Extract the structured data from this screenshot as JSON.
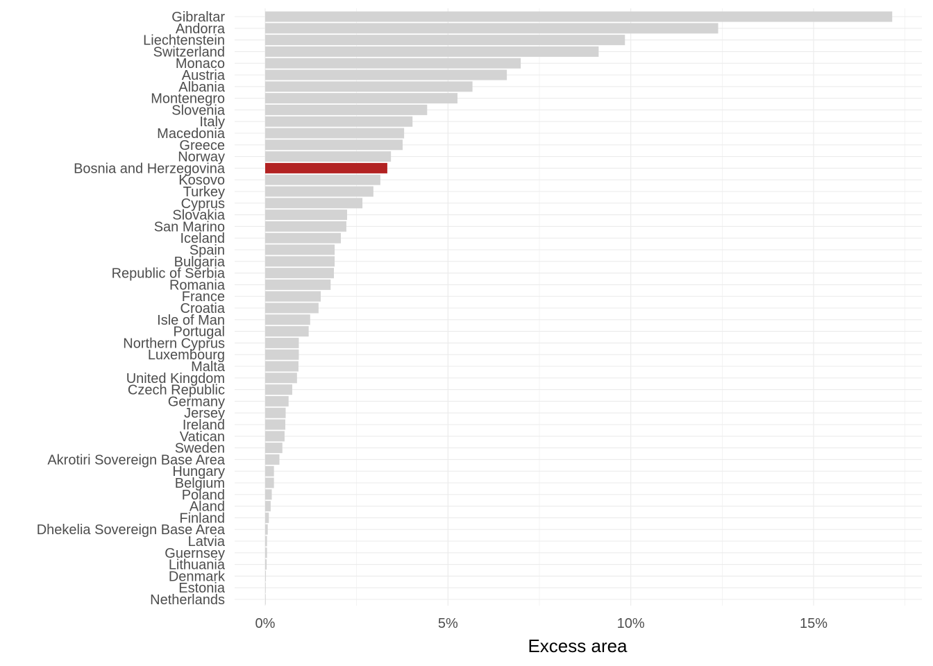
{
  "chart_data": {
    "type": "bar",
    "orientation": "horizontal",
    "xlabel": "Excess area",
    "ylabel": "",
    "title": "",
    "xlim": [
      -1.65,
      17.75
    ],
    "x_ticks": [
      0,
      5,
      10,
      15
    ],
    "x_tick_labels": [
      "0%",
      "5%",
      "10%",
      "15%"
    ],
    "grid": true,
    "highlight_color": "#b22222",
    "bar_color": "#d3d3d3",
    "categories": [
      "Gibraltar",
      "Andorra",
      "Liechtenstein",
      "Switzerland",
      "Monaco",
      "Austria",
      "Albania",
      "Montenegro",
      "Slovenia",
      "Italy",
      "Macedonia",
      "Greece",
      "Norway",
      "Bosnia and Herzegovina",
      "Kosovo",
      "Turkey",
      "Cyprus",
      "Slovakia",
      "San Marino",
      "Iceland",
      "Spain",
      "Bulgaria",
      "Republic of Serbia",
      "Romania",
      "France",
      "Croatia",
      "Isle of Man",
      "Portugal",
      "Northern Cyprus",
      "Luxembourg",
      "Malta",
      "United Kingdom",
      "Czech Republic",
      "Germany",
      "Jersey",
      "Ireland",
      "Vatican",
      "Sweden",
      "Akrotiri Sovereign Base Area",
      "Hungary",
      "Belgium",
      "Poland",
      "Aland",
      "Finland",
      "Dhekelia Sovereign Base Area",
      "Latvia",
      "Guernsey",
      "Lithuania",
      "Denmark",
      "Estonia",
      "Netherlands"
    ],
    "values": [
      17.15,
      12.39,
      9.84,
      9.12,
      6.99,
      6.61,
      5.67,
      5.26,
      4.43,
      4.03,
      3.8,
      3.76,
      3.44,
      3.34,
      3.15,
      2.96,
      2.66,
      2.24,
      2.22,
      2.07,
      1.9,
      1.9,
      1.88,
      1.79,
      1.52,
      1.46,
      1.23,
      1.19,
      0.92,
      0.92,
      0.91,
      0.87,
      0.74,
      0.64,
      0.56,
      0.55,
      0.53,
      0.47,
      0.39,
      0.24,
      0.24,
      0.18,
      0.15,
      0.1,
      0.07,
      0.05,
      0.05,
      0.04,
      0.02,
      0.01,
      0.005
    ],
    "highlighted": "Bosnia and Herzegovina"
  }
}
